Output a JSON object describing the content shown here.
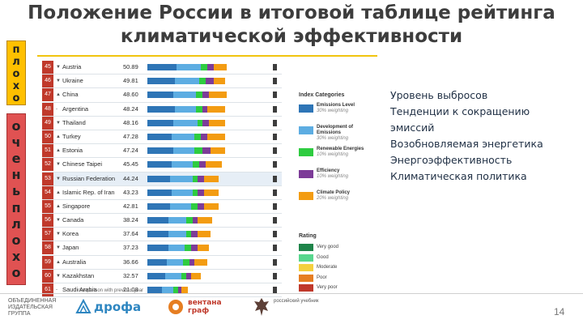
{
  "title": "Положение России в итоговой таблице рейтинга климатической эффективности",
  "side": {
    "top_letters": [
      "п",
      "л",
      "о",
      "х",
      "о"
    ],
    "bottom_letters": [
      "о",
      "ч",
      "е",
      "н",
      "ь",
      "п",
      "л",
      "о",
      "х",
      "о"
    ]
  },
  "table": {
    "rows": [
      {
        "rank": "45",
        "arrow": "▼",
        "country": "Austria",
        "score": "50.89",
        "highlight": false
      },
      {
        "rank": "46",
        "arrow": "▼",
        "country": "Ukraine",
        "score": "49.81",
        "highlight": false
      },
      {
        "rank": "47",
        "arrow": "▲",
        "country": "China",
        "score": "48.60",
        "highlight": false
      },
      {
        "rank": "48",
        "arrow": "-",
        "country": "Argentina",
        "score": "48.24",
        "highlight": false
      },
      {
        "rank": "49",
        "arrow": "▼",
        "country": "Thailand",
        "score": "48.16",
        "highlight": false
      },
      {
        "rank": "50",
        "arrow": "▲",
        "country": "Turkey",
        "score": "47.28",
        "highlight": false
      },
      {
        "rank": "51",
        "arrow": "▲",
        "country": "Estonia",
        "score": "47.24",
        "highlight": false
      },
      {
        "rank": "52",
        "arrow": "▼",
        "country": "Chinese Taipei",
        "score": "45.45",
        "highlight": false
      },
      {
        "rank": "53",
        "arrow": "▼",
        "country": "Russian Federation",
        "score": "44.24",
        "highlight": true
      },
      {
        "rank": "54",
        "arrow": "▲",
        "country": "Islamic Rep. of Iran",
        "score": "43.23",
        "highlight": false
      },
      {
        "rank": "55",
        "arrow": "▲",
        "country": "Singapore",
        "score": "42.81",
        "highlight": false
      },
      {
        "rank": "56",
        "arrow": "▼",
        "country": "Canada",
        "score": "38.24",
        "highlight": false
      },
      {
        "rank": "57",
        "arrow": "▼",
        "country": "Korea",
        "score": "37.64",
        "highlight": false
      },
      {
        "rank": "58",
        "arrow": "▼",
        "country": "Japan",
        "score": "37.23",
        "highlight": false
      },
      {
        "rank": "59",
        "arrow": "▲",
        "country": "Australia",
        "score": "36.66",
        "highlight": false
      },
      {
        "rank": "60",
        "arrow": "▼",
        "country": "Kazakhstan",
        "score": "32.57",
        "highlight": false
      },
      {
        "rank": "61",
        "arrow": "-",
        "country": "Saudi Arabia",
        "score": "21.08",
        "highlight": false
      }
    ],
    "footnote": "comparison with previous year"
  },
  "legend": {
    "title": "Index Categories",
    "items": [
      {
        "name": "Emissions Level",
        "weight": "30% weighting",
        "color": "#2e75b6"
      },
      {
        "name": "Development of Emissions",
        "weight": "30% weighting",
        "color": "#5dade2"
      },
      {
        "name": "Renewable Energies",
        "weight": "10% weighting",
        "color": "#2ecc40"
      },
      {
        "name": "Efficiency",
        "weight": "10% weighting",
        "color": "#7d3c98"
      },
      {
        "name": "Climate Policy",
        "weight": "20% weighting",
        "color": "#f39c12"
      }
    ]
  },
  "rating": {
    "title": "Rating",
    "items": [
      {
        "label": "Very good",
        "color": "#1e8449"
      },
      {
        "label": "Good",
        "color": "#58d68d"
      },
      {
        "label": "Moderate",
        "color": "#f4d03f"
      },
      {
        "label": "Poor",
        "color": "#e67e22"
      },
      {
        "label": "Very poor",
        "color": "#c0392b"
      }
    ]
  },
  "ru_legend": [
    "Уровень выбросов",
    "Тенденции к сокращению",
    "эмиссий",
    "Возобновляемая энергетика",
    "Энергоэффективность",
    "Климатическая политика"
  ],
  "footer": {
    "publisher": "ОБЪЕДИНЕННАЯ ИЗДАТЕЛЬСКАЯ ГРУППА",
    "logo1": "дрофа",
    "logo2": "вентана граф",
    "logo3": "российский учебник",
    "page": "14"
  }
}
